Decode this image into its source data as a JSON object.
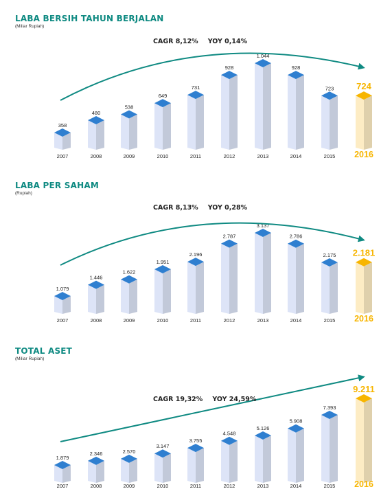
{
  "charts": [
    {
      "title": "LABA BERSIH TAHUN BERJALAN",
      "unit": "(Miliar Rupiah)",
      "cagr": "CAGR 8,12%",
      "yoy": "YOY 0,14%",
      "arrow_style": "curve"
    },
    {
      "title": "LABA PER SAHAM",
      "unit": "(Rupiah)",
      "cagr": "CAGR 8,13%",
      "yoy": "YOY 0,28%",
      "arrow_style": "curve"
    },
    {
      "title": "TOTAL ASET",
      "unit": "(Miliar Rupiah)",
      "cagr": "CAGR 19,32%",
      "yoy": "YOY 24,59%",
      "arrow_style": "straight"
    }
  ],
  "chart_data": [
    {
      "type": "bar",
      "title": "LABA BERSIH TAHUN BERJALAN",
      "categories": [
        "2007",
        "2008",
        "2009",
        "2010",
        "2011",
        "2012",
        "2013",
        "2014",
        "2015",
        "2016"
      ],
      "values": [
        358,
        480,
        538,
        649,
        731,
        928,
        1044,
        928,
        723,
        724
      ],
      "value_labels": [
        "358",
        "480",
        "538",
        "649",
        "731",
        "928",
        "1.044",
        "928",
        "723",
        "724"
      ],
      "highlight_category": "2016",
      "colors": {
        "bar": "#dde4f7",
        "top": "#2f7fd0",
        "highlight_bar": "#fdecc4",
        "highlight_top": "#f7b500",
        "arrow": "#0f8a82"
      }
    },
    {
      "type": "bar",
      "title": "LABA PER SAHAM",
      "categories": [
        "2007",
        "2008",
        "2009",
        "2010",
        "2011",
        "2012",
        "2013",
        "2014",
        "2015",
        "2016"
      ],
      "values": [
        1079,
        1446,
        1622,
        1951,
        2196,
        2787,
        3137,
        2786,
        2175,
        2181
      ],
      "value_labels": [
        "1.079",
        "1.446",
        "1.622",
        "1.951",
        "2.196",
        "2.787",
        "3.137",
        "2.786",
        "2.175",
        "2.181"
      ],
      "highlight_category": "2016",
      "colors": {
        "bar": "#dde4f7",
        "top": "#2f7fd0",
        "highlight_bar": "#fdecc4",
        "highlight_top": "#f7b500",
        "arrow": "#0f8a82"
      }
    },
    {
      "type": "bar",
      "title": "TOTAL ASET",
      "categories": [
        "2007",
        "2008",
        "2009",
        "2010",
        "2011",
        "2012",
        "2013",
        "2014",
        "2015",
        "2016"
      ],
      "values": [
        1879,
        2346,
        2570,
        3147,
        3755,
        4548,
        5126,
        5908,
        7393,
        9211
      ],
      "value_labels": [
        "1.879",
        "2.346",
        "2.570",
        "3.147",
        "3.755",
        "4.548",
        "5.126",
        "5.908",
        "7.393",
        "9.211"
      ],
      "highlight_category": "2016",
      "colors": {
        "bar": "#dde4f7",
        "top": "#2f7fd0",
        "highlight_bar": "#fdecc4",
        "highlight_top": "#f7b500",
        "arrow": "#0f8a82"
      }
    }
  ]
}
